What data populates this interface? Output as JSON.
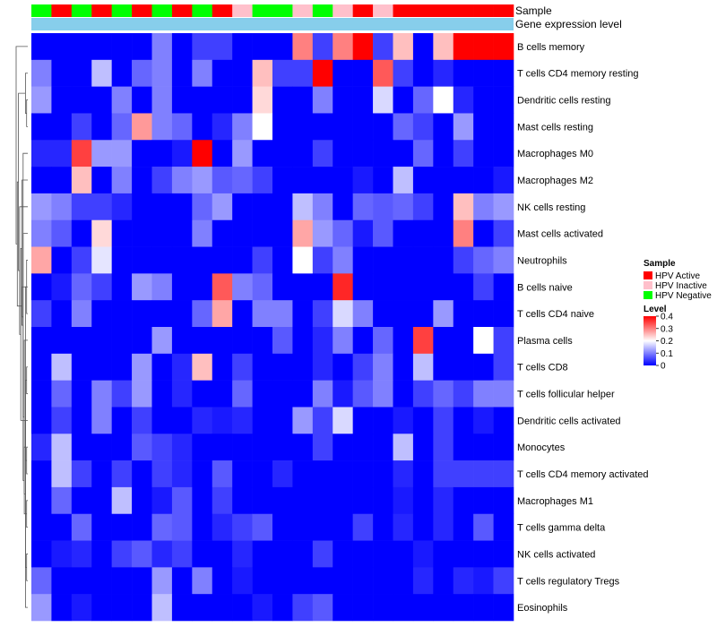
{
  "chart_data": {
    "type": "heatmap",
    "title": "",
    "row_labels": [
      "B cells memory",
      "T cells CD4 memory resting",
      "Dendritic cells resting",
      "Mast cells resting",
      "Macrophages M0",
      "Macrophages M2",
      "NK cells resting",
      "Mast cells activated",
      "Neutrophils",
      "B cells naive",
      "T cells CD4 naive",
      "Plasma cells",
      "T cells CD8",
      "T cells follicular helper",
      "Dendritic cells activated",
      "Monocytes",
      "T cells CD4 memory activated",
      "Macrophages M1",
      "T cells gamma delta",
      "NK cells activated",
      "T cells regulatory  Tregs",
      "Eosinophils"
    ],
    "annotation_tracks": [
      "Sample",
      "Gene expression level"
    ],
    "sample_annotation": [
      "Negative",
      "Active",
      "Negative",
      "Active",
      "Negative",
      "Active",
      "Negative",
      "Active",
      "Negative",
      "Active",
      "Inactive",
      "Negative",
      "Negative",
      "Inactive",
      "Negative",
      "Inactive",
      "Active",
      "Inactive",
      "Active",
      "Active",
      "Active",
      "Active",
      "Active",
      "Active"
    ],
    "expression_level_color": "#87ceeb",
    "values": [
      [
        0,
        0,
        0,
        0,
        0,
        0,
        0.1,
        0,
        0.05,
        0.05,
        0,
        0,
        0,
        0.3,
        0.05,
        0.3,
        0.4,
        0.05,
        0.25,
        0,
        0.25,
        0.4,
        0.4,
        0.4
      ],
      [
        0.1,
        0,
        0,
        0.15,
        0,
        0.08,
        0.1,
        0,
        0.1,
        0,
        0,
        0.25,
        0.05,
        0.05,
        0.4,
        0,
        0,
        0.33,
        0.05,
        0,
        0.03,
        0,
        0,
        0
      ],
      [
        0.12,
        0,
        0,
        0,
        0.1,
        0,
        0.1,
        0,
        0,
        0,
        0,
        0.23,
        0,
        0,
        0.1,
        0,
        0,
        0.17,
        0,
        0.08,
        0.2,
        0.03,
        0,
        0
      ],
      [
        0,
        0,
        0.05,
        0,
        0.08,
        0.28,
        0.1,
        0.08,
        0,
        0.03,
        0.1,
        0.2,
        0,
        0,
        0,
        0,
        0,
        0,
        0.08,
        0.05,
        0,
        0.12,
        0,
        0
      ],
      [
        0.03,
        0.03,
        0.35,
        0.12,
        0.12,
        0,
        0,
        0.02,
        0.4,
        0,
        0.12,
        0,
        0,
        0,
        0.05,
        0,
        0,
        0,
        0,
        0.08,
        0,
        0.05,
        0,
        0
      ],
      [
        0,
        0,
        0.25,
        0,
        0.1,
        0,
        0.05,
        0.1,
        0.12,
        0.07,
        0.08,
        0.05,
        0,
        0,
        0,
        0,
        0.02,
        0,
        0.15,
        0,
        0,
        0,
        0,
        0.02
      ],
      [
        0.12,
        0.1,
        0.05,
        0.05,
        0.03,
        0,
        0,
        0,
        0.08,
        0.12,
        0,
        0,
        0,
        0.15,
        0.1,
        0,
        0.08,
        0.07,
        0.08,
        0.05,
        0,
        0.25,
        0.1,
        0.12
      ],
      [
        0.1,
        0.07,
        0,
        0.23,
        0,
        0,
        0,
        0,
        0.1,
        0,
        0,
        0,
        0,
        0.27,
        0.12,
        0.08,
        0.02,
        0.07,
        0,
        0,
        0,
        0.3,
        0,
        0.05
      ],
      [
        0.27,
        0,
        0.05,
        0.18,
        0,
        0,
        0,
        0,
        0,
        0,
        0,
        0.05,
        0,
        0.2,
        0.05,
        0.1,
        0,
        0,
        0,
        0,
        0,
        0.05,
        0.08,
        0.1
      ],
      [
        0,
        0.02,
        0.08,
        0.05,
        0,
        0.12,
        0.1,
        0,
        0,
        0.33,
        0.1,
        0.08,
        0,
        0,
        0,
        0.37,
        0,
        0,
        0,
        0,
        0,
        0,
        0.05,
        0
      ],
      [
        0.05,
        0,
        0.1,
        0,
        0,
        0,
        0,
        0,
        0.08,
        0.27,
        0,
        0.1,
        0.1,
        0,
        0.05,
        0.17,
        0.1,
        0,
        0,
        0,
        0.12,
        0,
        0,
        0
      ],
      [
        0,
        0,
        0,
        0,
        0,
        0,
        0.12,
        0,
        0,
        0,
        0,
        0,
        0.07,
        0,
        0.03,
        0.1,
        0,
        0.08,
        0,
        0.35,
        0,
        0,
        0.2,
        0.05
      ],
      [
        0,
        0.15,
        0,
        0,
        0,
        0.12,
        0,
        0.03,
        0.25,
        0,
        0.05,
        0,
        0,
        0,
        0.03,
        0,
        0.05,
        0.1,
        0,
        0.15,
        0,
        0,
        0,
        0.05
      ],
      [
        0,
        0.08,
        0,
        0.1,
        0.05,
        0.12,
        0,
        0.03,
        0,
        0,
        0.08,
        0,
        0,
        0,
        0.1,
        0.02,
        0.07,
        0.1,
        0,
        0.05,
        0.08,
        0.05,
        0.1,
        0.1
      ],
      [
        0,
        0.05,
        0,
        0.1,
        0,
        0.05,
        0,
        0,
        0.03,
        0.02,
        0.03,
        0,
        0,
        0.12,
        0.05,
        0.17,
        0,
        0,
        0.02,
        0,
        0.05,
        0,
        0.02,
        0
      ],
      [
        0.03,
        0.15,
        0,
        0,
        0,
        0.07,
        0.05,
        0.03,
        0,
        0,
        0,
        0,
        0,
        0,
        0.05,
        0,
        0,
        0,
        0.15,
        0,
        0.05,
        0,
        0,
        0
      ],
      [
        0,
        0.15,
        0.05,
        0,
        0.05,
        0,
        0.05,
        0.03,
        0,
        0.07,
        0,
        0,
        0.03,
        0,
        0,
        0,
        0,
        0,
        0.03,
        0,
        0.05,
        0.05,
        0.05,
        0.05
      ],
      [
        0,
        0.08,
        0,
        0,
        0.15,
        0,
        0.02,
        0.07,
        0,
        0.05,
        0,
        0,
        0,
        0,
        0,
        0,
        0,
        0,
        0.02,
        0,
        0.03,
        0,
        0,
        0
      ],
      [
        0,
        0,
        0.08,
        0,
        0,
        0,
        0.08,
        0.07,
        0,
        0.03,
        0.05,
        0.07,
        0,
        0,
        0,
        0,
        0.05,
        0,
        0.03,
        0,
        0.03,
        0,
        0.07,
        0
      ],
      [
        0,
        0.02,
        0.03,
        0,
        0.05,
        0.07,
        0.03,
        0.05,
        0,
        0,
        0.03,
        0,
        0,
        0,
        0.05,
        0,
        0,
        0,
        0,
        0.02,
        0,
        0,
        0,
        0
      ],
      [
        0.08,
        0,
        0,
        0,
        0,
        0,
        0.12,
        0,
        0.1,
        0,
        0.02,
        0,
        0,
        0,
        0,
        0,
        0,
        0,
        0,
        0.03,
        0,
        0.03,
        0.02,
        0.05
      ],
      [
        0.12,
        0,
        0.02,
        0,
        0,
        0,
        0.15,
        0,
        0,
        0,
        0,
        0.02,
        0,
        0.05,
        0.07,
        0,
        0,
        0,
        0,
        0,
        0,
        0,
        0,
        0
      ]
    ],
    "row_dendrogram": [
      [
        8,
        10
      ],
      [
        12,
        13
      ],
      [
        15,
        16
      ],
      [
        17,
        18
      ],
      [
        19,
        20
      ],
      [
        21,
        22
      ],
      [
        23,
        24
      ],
      [
        25,
        27
      ],
      [
        2,
        3
      ],
      [
        29,
        4
      ],
      [
        1,
        30
      ],
      [
        31,
        5
      ],
      [
        14,
        26
      ],
      [
        33,
        28
      ],
      [
        34,
        11
      ],
      [
        35,
        6
      ],
      [
        36,
        7
      ],
      [
        37,
        32
      ],
      [
        38,
        9
      ],
      [
        39,
        40
      ],
      [
        0,
        41
      ]
    ],
    "legend": {
      "sample_title": "Sample",
      "sample_items": [
        {
          "key": "Active",
          "label": "HPV Active",
          "color": "#ff0000"
        },
        {
          "key": "Inactive",
          "label": "HPV Inactive",
          "color": "#ffc0cb"
        },
        {
          "key": "Negative",
          "label": "HPV Negative",
          "color": "#00ff00"
        }
      ],
      "level_title": "Level",
      "level_ticks": [
        0.4,
        0.3,
        0.2,
        0.1,
        0
      ],
      "level_range": [
        0,
        0.4
      ]
    }
  }
}
